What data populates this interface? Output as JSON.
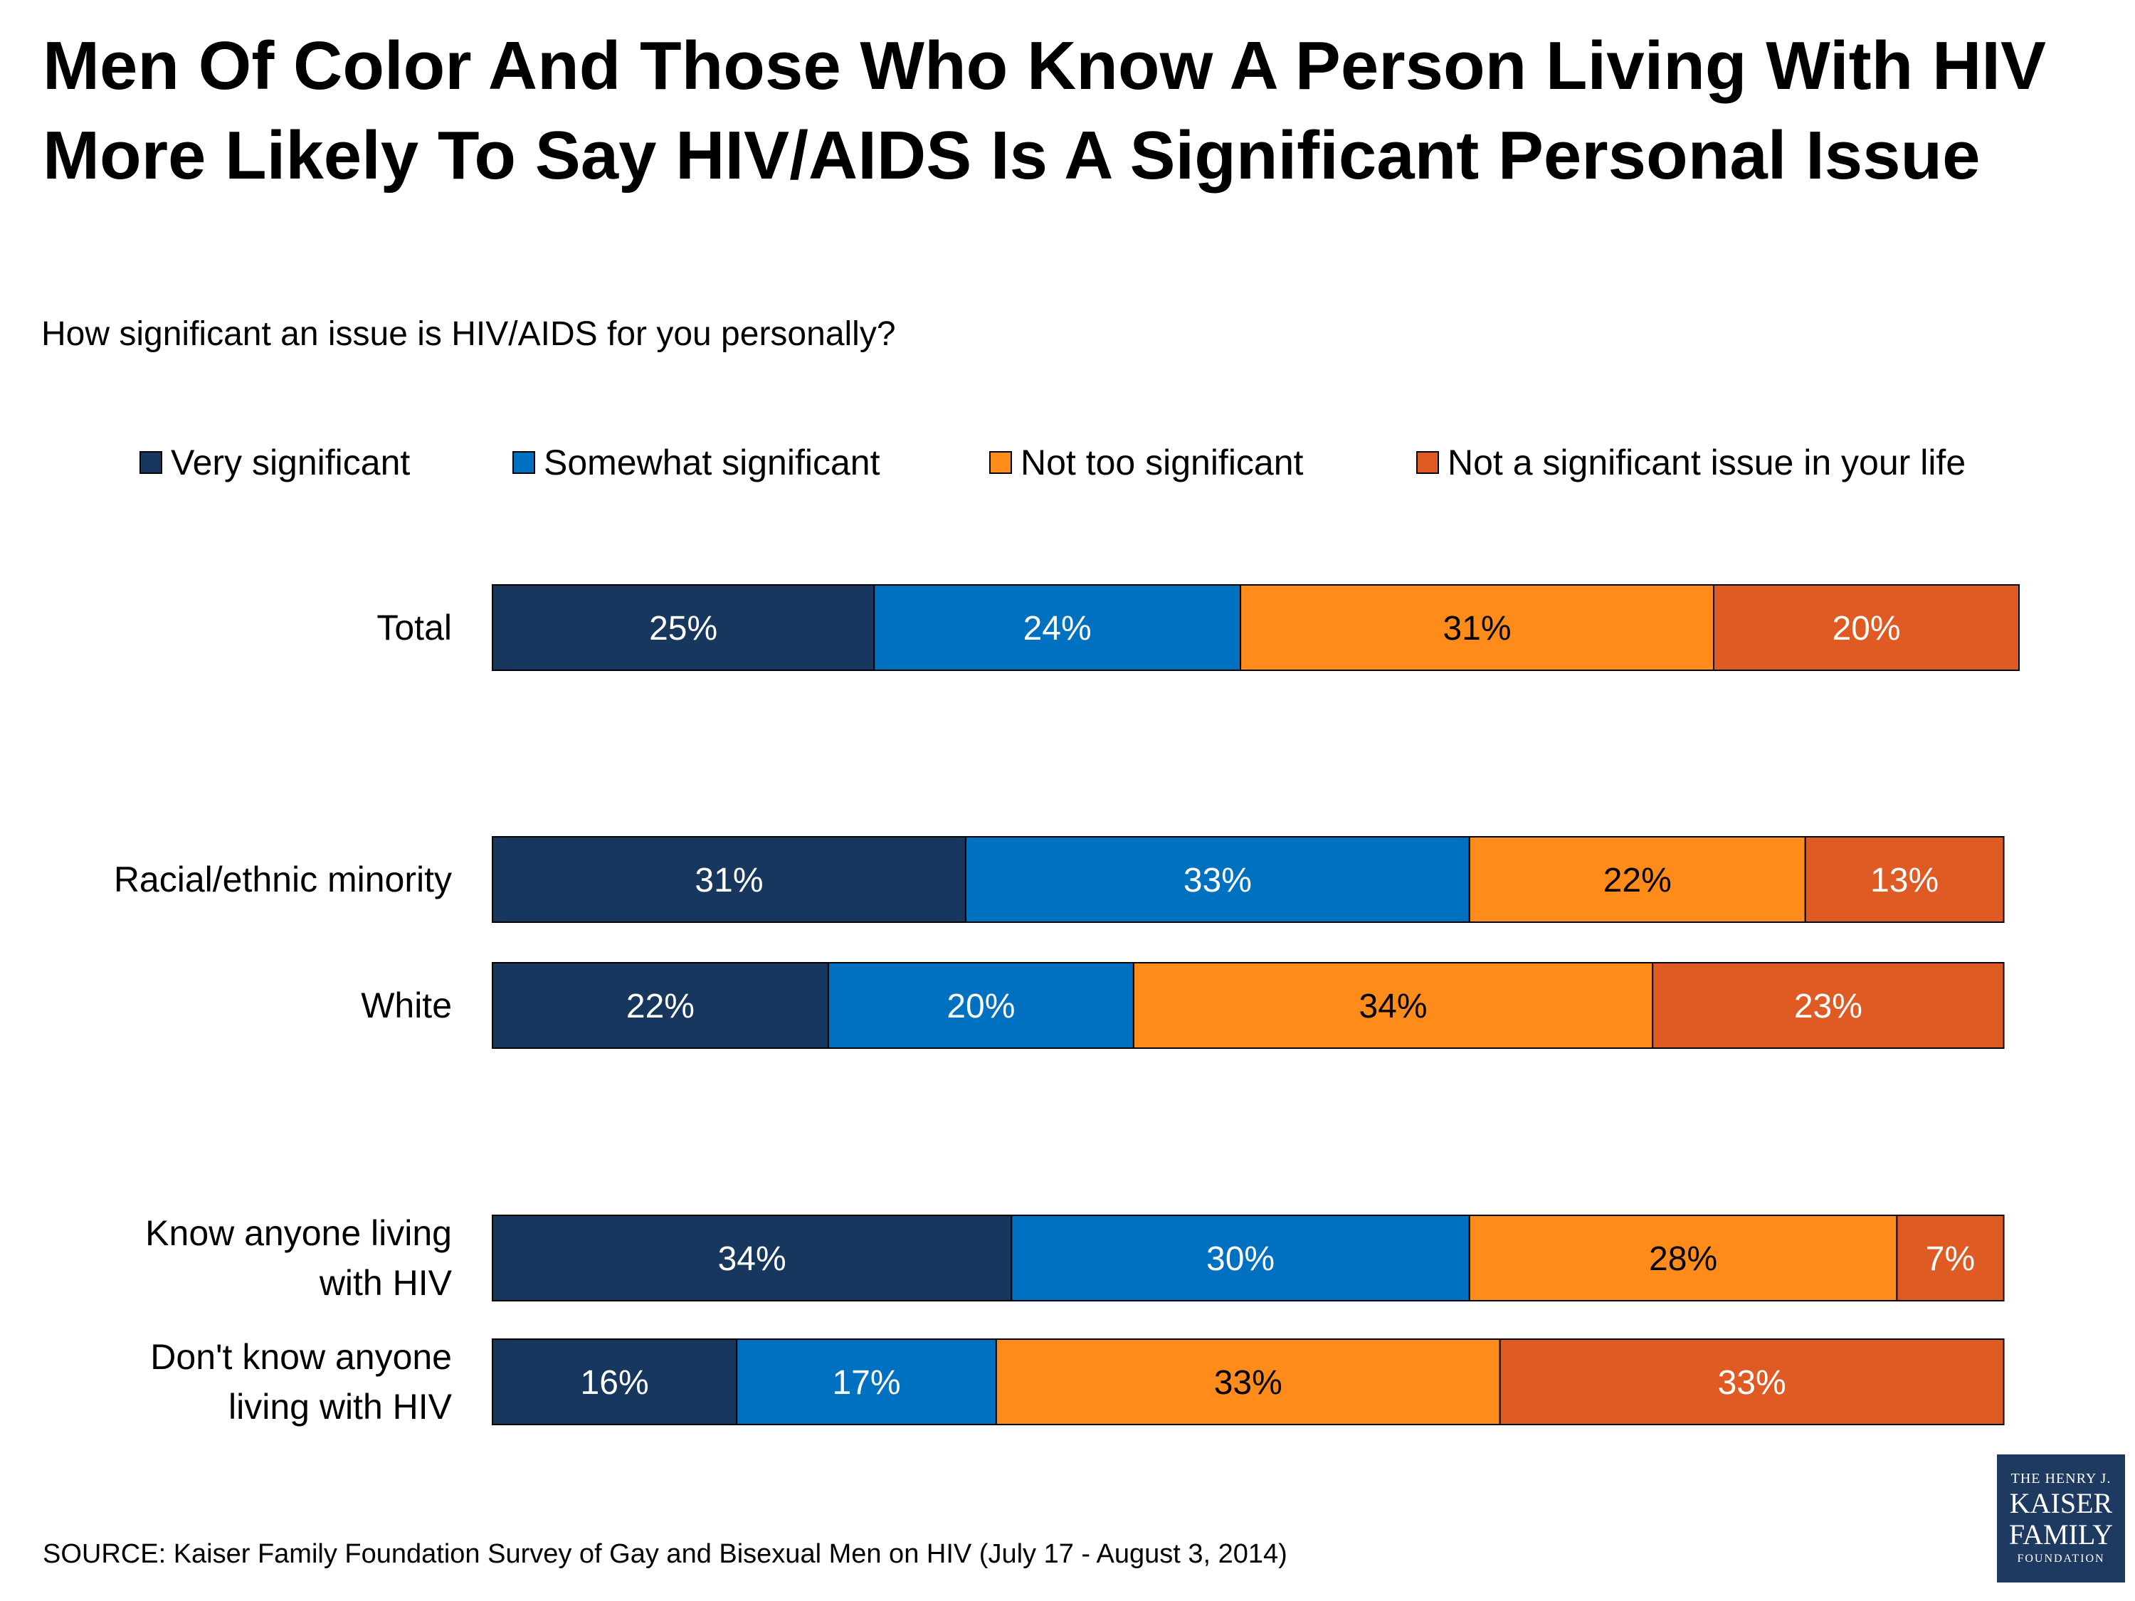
{
  "title_lines": [
    "Men Of Color And Those Who Know A Person Living With HIV",
    "More Likely To Say HIV/AIDS Is A Significant Personal Issue"
  ],
  "question": "How significant an issue is HIV/AIDS for you personally?",
  "source": "SOURCE: Kaiser Family Foundation Survey of Gay and Bisexual Men on HIV (July 17 - August 3, 2014)",
  "logo": {
    "line1": "THE HENRY J.",
    "line2": "KAISER",
    "line3": "FAMILY",
    "line4": "FOUNDATION"
  },
  "chart_data": {
    "type": "bar",
    "orientation": "horizontal",
    "stacked": true,
    "categories": [
      "Total",
      "Racial/ethnic minority",
      "White",
      "Know anyone living\nwith HIV",
      "Don't know anyone\nliving with HIV"
    ],
    "series": [
      {
        "name": "Very significant",
        "color": "#17375e",
        "values": [
          25,
          31,
          22,
          34,
          16
        ]
      },
      {
        "name": "Somewhat significant",
        "color": "#0070c0",
        "values": [
          24,
          33,
          20,
          30,
          17
        ]
      },
      {
        "name": "Not too significant",
        "color": "#ff8c1a",
        "values": [
          31,
          22,
          34,
          28,
          33
        ]
      },
      {
        "name": "Not a significant issue in your life",
        "color": "#e05a24",
        "values": [
          20,
          13,
          23,
          7,
          33
        ]
      }
    ],
    "data_labels": [
      [
        "25%",
        "24%",
        "31%",
        "20%"
      ],
      [
        "31%",
        "33%",
        "22%",
        "13%"
      ],
      [
        "22%",
        "20%",
        "34%",
        "23%"
      ],
      [
        "34%",
        "30%",
        "28%",
        "7%"
      ],
      [
        "16%",
        "17%",
        "33%",
        "33%"
      ]
    ],
    "label_colors": [
      "#ffffff",
      "#ffffff",
      "#000000",
      "#ffffff"
    ],
    "legend_position": "top",
    "grid": false,
    "xlim": [
      0,
      100
    ]
  }
}
